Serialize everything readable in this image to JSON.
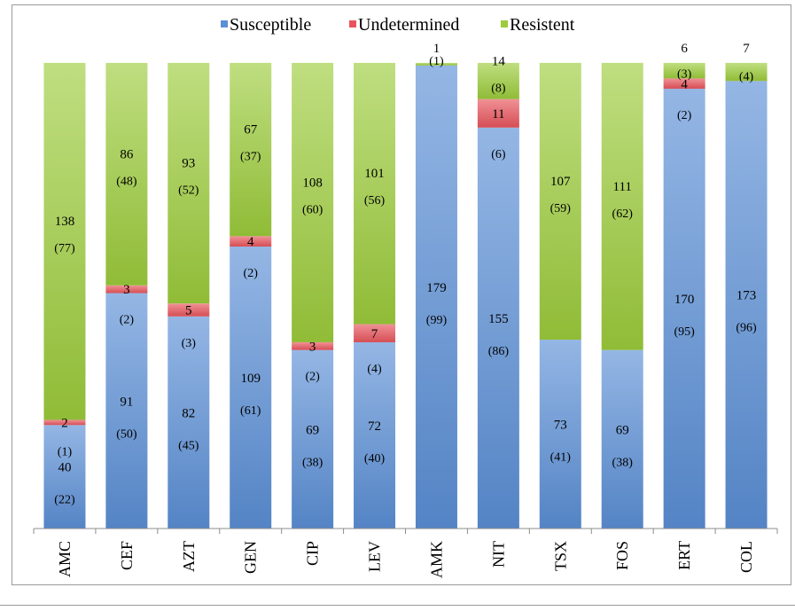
{
  "chart_data": {
    "type": "bar",
    "stacked": true,
    "title": "",
    "xlabel": "",
    "ylabel": "",
    "ylim": [
      0,
      181
    ],
    "grid": false,
    "legend_position": "top",
    "categories": [
      "AMC",
      "CEF",
      "AZT",
      "GEN",
      "CIP",
      "LEV",
      "AMK",
      "NIT",
      "TSX",
      "FOS",
      "ERT",
      "COL"
    ],
    "series": [
      {
        "name": "Susceptible",
        "color": "#5b8fd6",
        "values": [
          40,
          91,
          82,
          109,
          69,
          72,
          179,
          155,
          73,
          69,
          170,
          173
        ],
        "value_labels": [
          "40",
          "91",
          "82",
          "109",
          "69",
          "72",
          "179",
          "155",
          "73",
          "69",
          "170",
          "173"
        ],
        "percent_labels": [
          "(22)",
          "(50)",
          "(45)",
          "(61)",
          "(38)",
          "(40)",
          "(99)",
          "(86)",
          "(41)",
          "(38)",
          "(95)",
          "(96)"
        ]
      },
      {
        "name": "Undetermined",
        "color": "#e8555c",
        "values": [
          2,
          3,
          5,
          4,
          3,
          7,
          0,
          11,
          0,
          0,
          4,
          0
        ],
        "value_labels": [
          "2",
          "3",
          "5",
          "4",
          "3",
          "7",
          "",
          "11",
          "",
          "",
          "4",
          ""
        ],
        "percent_labels": [
          "(1)",
          "(2)",
          "(3)",
          "(2)",
          "(2)",
          "(4)",
          "",
          "(6)",
          "",
          "",
          "(2)",
          ""
        ]
      },
      {
        "name": "Resistent",
        "color": "#9ccc3c",
        "values": [
          138,
          86,
          93,
          67,
          108,
          101,
          1,
          14,
          107,
          111,
          6,
          7
        ],
        "value_labels": [
          "138",
          "86",
          "93",
          "67",
          "108",
          "101",
          "1",
          "14",
          "107",
          "111",
          "6",
          "7"
        ],
        "percent_labels": [
          "(77)",
          "(48)",
          "(52)",
          "(37)",
          "(60)",
          "(56)",
          "(1)",
          "(8)",
          "(59)",
          "(62)",
          "(3)",
          "(4)"
        ]
      }
    ]
  }
}
